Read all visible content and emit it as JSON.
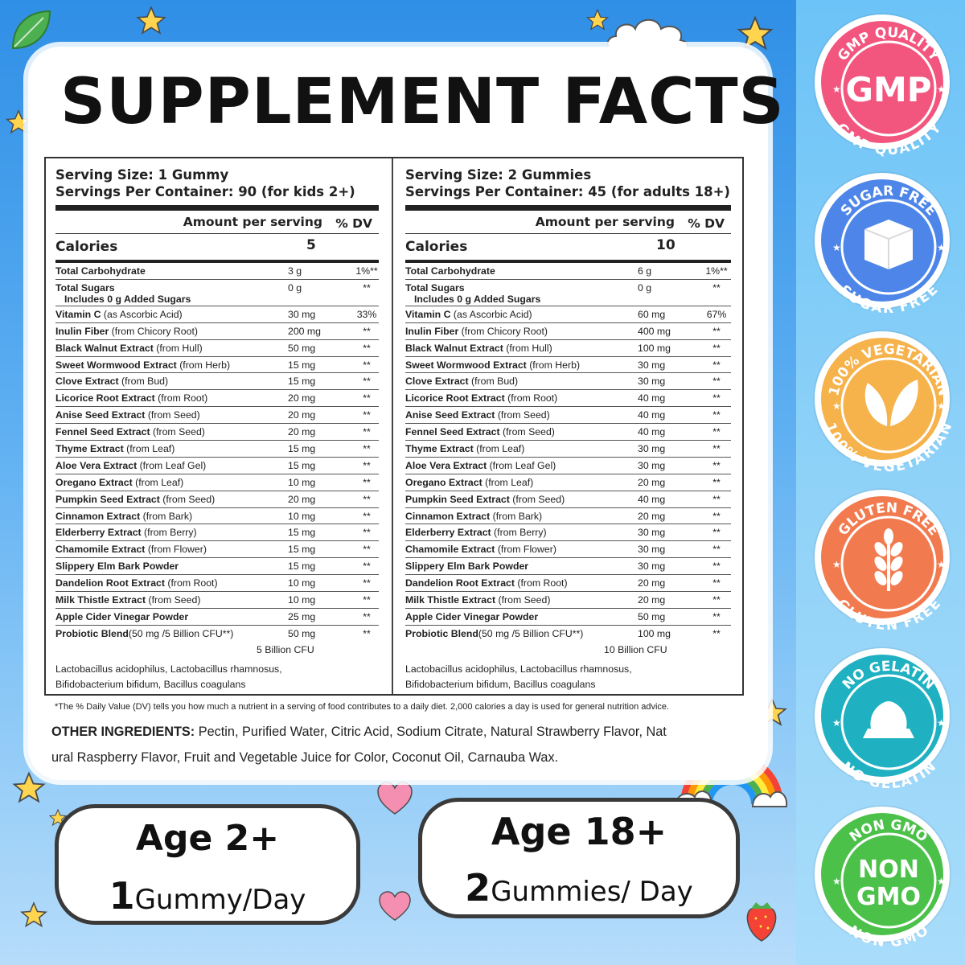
{
  "title": "SUPPLEMENT FACTS",
  "colors": {
    "background_blue": "#3f97ea",
    "gmp": "#f2557e",
    "sugar_free": "#4d86e8",
    "vegetarian": "#f6b24b",
    "gluten_free": "#f27a4f",
    "no_gelatin": "#1fb1c1",
    "non_gmo": "#4cc14a"
  },
  "kids": {
    "serving_size": "Serving Size: 1 Gummy",
    "servings_per_container": "Servings Per Container: 90 (for kids 2+)",
    "amount_header": "Amount per serving",
    "dv_header": "% DV",
    "calories_label": "Calories",
    "calories_value": "5",
    "carb": {
      "name": "Total Carbohydrate",
      "amount": "3 g",
      "dv": "1%**"
    },
    "sugars": {
      "name": "Total Sugars",
      "sub": "Includes 0 g Added Sugars",
      "amount": "0 g",
      "dv": "**"
    },
    "nutrients": [
      {
        "name": "Vitamin C",
        "source": " (as Ascorbic Acid)",
        "amount": "30 mg",
        "dv": "33%"
      },
      {
        "name": "Inulin Fiber",
        "source": " (from Chicory Root)",
        "amount": "200 mg",
        "dv": "**"
      },
      {
        "name": "Black Walnut Extract",
        "source": " (from Hull)",
        "amount": "50 mg",
        "dv": "**"
      },
      {
        "name": "Sweet Wormwood Extract",
        "source": " (from Herb)",
        "amount": "15 mg",
        "dv": "**"
      },
      {
        "name": "Clove Extract",
        "source": " (from Bud)",
        "amount": "15 mg",
        "dv": "**"
      },
      {
        "name": "Licorice Root Extract",
        "source": " (from Root)",
        "amount": "20 mg",
        "dv": "**"
      },
      {
        "name": "Anise Seed Extract",
        "source": " (from Seed)",
        "amount": "20 mg",
        "dv": "**"
      },
      {
        "name": "Fennel Seed Extract",
        "source": " (from Seed)",
        "amount": "20 mg",
        "dv": "**"
      },
      {
        "name": "Thyme Extract",
        "source": " (from Leaf)",
        "amount": "15 mg",
        "dv": "**"
      },
      {
        "name": "Aloe Vera Extract",
        "source": " (from Leaf Gel)",
        "amount": "15 mg",
        "dv": "**"
      },
      {
        "name": "Oregano Extract",
        "source": " (from Leaf)",
        "amount": "10 mg",
        "dv": "**"
      },
      {
        "name": "Pumpkin Seed Extract",
        "source": " (from Seed)",
        "amount": "20 mg",
        "dv": "**"
      },
      {
        "name": "Cinnamon Extract",
        "source": " (from Bark)",
        "amount": "10 mg",
        "dv": "**"
      },
      {
        "name": "Elderberry Extract",
        "source": " (from Berry)",
        "amount": "15 mg",
        "dv": "**"
      },
      {
        "name": "Chamomile Extract",
        "source": " (from Flower)",
        "amount": "15 mg",
        "dv": "**"
      },
      {
        "name": "Slippery Elm Bark Powder",
        "source": "",
        "amount": "15 mg",
        "dv": "**"
      },
      {
        "name": "Dandelion Root Extract",
        "source": " (from Root)",
        "amount": "10 mg",
        "dv": "**"
      },
      {
        "name": "Milk Thistle Extract",
        "source": " (from Seed)",
        "amount": "10 mg",
        "dv": "**"
      },
      {
        "name": "Apple Cider Vinegar Powder",
        "source": "",
        "amount": "25 mg",
        "dv": "**"
      }
    ],
    "probiotic": {
      "name": "Probiotic Blend",
      "source": "(50 mg /5 Billion CFU**)",
      "amount": "50 mg",
      "dv": "**",
      "cfu": "5 Billion CFU"
    },
    "strains_1": "Lactobacillus acidophilus, Lactobacillus rhamnosus,",
    "strains_2": "Bifidobacterium bifidum, Bacillus coagulans"
  },
  "adults": {
    "serving_size": "Serving Size: 2 Gummies",
    "servings_per_container": "Servings Per Container: 45 (for adults 18+)",
    "amount_header": "Amount per serving",
    "dv_header": "% DV",
    "calories_label": "Calories",
    "calories_value": "10",
    "carb": {
      "name": "Total Carbohydrate",
      "amount": "6 g",
      "dv": "1%**"
    },
    "sugars": {
      "name": "Total Sugars",
      "sub": "Includes 0 g Added Sugars",
      "amount": "0 g",
      "dv": "**"
    },
    "nutrients": [
      {
        "name": "Vitamin C",
        "source": " (as Ascorbic Acid)",
        "amount": "60 mg",
        "dv": "67%"
      },
      {
        "name": "Inulin Fiber",
        "source": " (from Chicory Root)",
        "amount": "400 mg",
        "dv": "**"
      },
      {
        "name": "Black Walnut Extract",
        "source": " (from Hull)",
        "amount": "100 mg",
        "dv": "**"
      },
      {
        "name": "Sweet Wormwood Extract",
        "source": " (from Herb)",
        "amount": "30 mg",
        "dv": "**"
      },
      {
        "name": "Clove Extract",
        "source": " (from Bud)",
        "amount": "30 mg",
        "dv": "**"
      },
      {
        "name": "Licorice Root Extract",
        "source": " (from Root)",
        "amount": "40 mg",
        "dv": "**"
      },
      {
        "name": "Anise Seed Extract",
        "source": " (from Seed)",
        "amount": "40 mg",
        "dv": "**"
      },
      {
        "name": "Fennel Seed Extract",
        "source": " (from Seed)",
        "amount": "40 mg",
        "dv": "**"
      },
      {
        "name": "Thyme Extract",
        "source": " (from Leaf)",
        "amount": "30 mg",
        "dv": "**"
      },
      {
        "name": "Aloe Vera Extract",
        "source": " (from Leaf Gel)",
        "amount": "30 mg",
        "dv": "**"
      },
      {
        "name": "Oregano Extract",
        "source": " (from Leaf)",
        "amount": "20 mg",
        "dv": "**"
      },
      {
        "name": "Pumpkin Seed Extract",
        "source": " (from Seed)",
        "amount": "40 mg",
        "dv": "**"
      },
      {
        "name": "Cinnamon Extract",
        "source": " (from Bark)",
        "amount": "20 mg",
        "dv": "**"
      },
      {
        "name": "Elderberry Extract",
        "source": " (from Berry)",
        "amount": "30 mg",
        "dv": "**"
      },
      {
        "name": "Chamomile Extract",
        "source": " (from Flower)",
        "amount": "30 mg",
        "dv": "**"
      },
      {
        "name": "Slippery Elm Bark Powder",
        "source": "",
        "amount": "30 mg",
        "dv": "**"
      },
      {
        "name": "Dandelion Root Extract",
        "source": " (from Root)",
        "amount": "20 mg",
        "dv": "**"
      },
      {
        "name": "Milk Thistle Extract",
        "source": " (from Seed)",
        "amount": "20 mg",
        "dv": "**"
      },
      {
        "name": "Apple Cider Vinegar Powder",
        "source": "",
        "amount": "50 mg",
        "dv": "**"
      }
    ],
    "probiotic": {
      "name": "Probiotic Blend",
      "source": "(50 mg /5 Billion CFU**)",
      "amount": "100 mg",
      "dv": "**",
      "cfu": "10 Billion CFU"
    },
    "strains_1": "Lactobacillus acidophilus, Lactobacillus rhamnosus,",
    "strains_2": "Bifidobacterium bifidum, Bacillus coagulans"
  },
  "footnote": "*The % Daily Value (DV) tells you how much a nutrient in a serving of food contributes to a daily diet. 2,000 calories a day is used for general nutrition advice.",
  "other_ingredients_label": "OTHER INGREDIENTS:",
  "other_ingredients_line1": " Pectin, Purified Water, Citric Acid, Sodium Citrate, Natural Strawberry Flavor, Nat",
  "other_ingredients_line2": "ural Raspberry Flavor, Fruit and Vegetable Juice for Color, Coconut Oil, Carnauba Wax.",
  "age_kids": {
    "title": "Age 2+",
    "count": "1",
    "unit": "Gummy/Day"
  },
  "age_adults": {
    "title": "Age 18+",
    "count": "2",
    "unit": "Gummies/ Day"
  },
  "badges": [
    {
      "top": "GMP QUALITY",
      "center": "GMP",
      "bottom": "GMP QUALITY",
      "icon": "gmp-text"
    },
    {
      "top": "SUGAR FREE",
      "center": "",
      "bottom": "SUGAR FREE",
      "icon": "sugar-cube-icon"
    },
    {
      "top": "100% VEGETARIAN",
      "center": "",
      "bottom": "100% VEGETARIAN",
      "icon": "leaf-icon"
    },
    {
      "top": "GLUTEN FREE",
      "center": "",
      "bottom": "GLUTEN FREE",
      "icon": "wheat-icon"
    },
    {
      "top": "NO GELATIN",
      "center": "",
      "bottom": "NO GELATIN",
      "icon": "gummy-icon"
    },
    {
      "top": "NON GMO",
      "center": "NON GMO",
      "bottom": "NON GMO",
      "icon": "non-gmo-text"
    }
  ]
}
